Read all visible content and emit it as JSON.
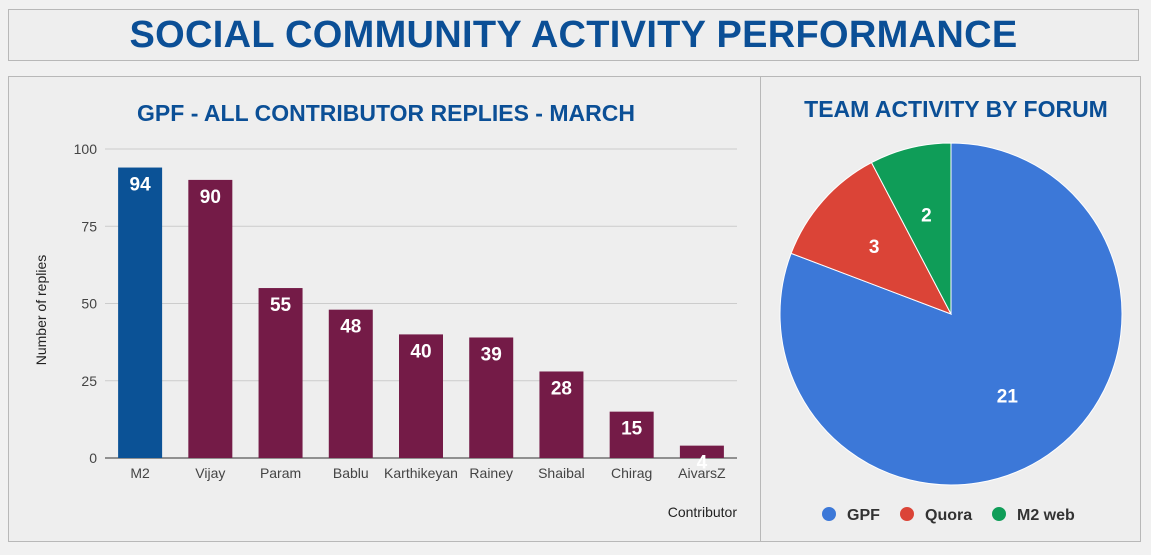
{
  "header": {
    "title": "SOCIAL COMMUNITY ACTIVITY PERFORMANCE"
  },
  "colors": {
    "title": "#0b4f96",
    "bar_highlight": "#0b5296",
    "bar_default": "#741b47",
    "gpf": "#3c78d8",
    "quora": "#db4437",
    "m2web": "#0f9d58"
  },
  "chart_data": [
    {
      "type": "bar",
      "title": "GPF - ALL CONTRIBUTOR REPLIES - MARCH",
      "xlabel": "Contributor",
      "ylabel": "Number of replies",
      "ylim": [
        0,
        100
      ],
      "yticks": [
        0,
        25,
        50,
        75,
        100
      ],
      "grid": true,
      "categories": [
        "M2",
        "Vijay",
        "Param",
        "Bablu",
        "Karthikeyan",
        "Rainey",
        "Shaibal",
        "Chirag",
        "AivarsZ"
      ],
      "values": [
        94,
        90,
        55,
        48,
        40,
        39,
        28,
        15,
        4
      ]
    },
    {
      "type": "pie",
      "title": "TEAM ACTIVITY BY FORUM",
      "legend_position": "bottom",
      "labels": [
        "GPF",
        "Quora",
        "M2 web"
      ],
      "values": [
        21,
        3,
        2
      ]
    }
  ]
}
